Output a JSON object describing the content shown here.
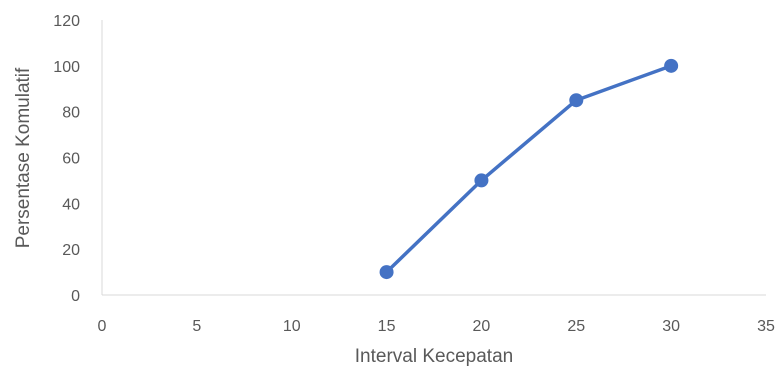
{
  "chart_data": {
    "type": "scatter",
    "title": "",
    "xlabel": "Interval Kecepatan",
    "ylabel": "Persentase Komulatif",
    "xlim": [
      0,
      35
    ],
    "ylim": [
      0,
      120
    ],
    "x_ticks": [
      "0",
      "5",
      "10",
      "15",
      "20",
      "25",
      "30",
      "35"
    ],
    "y_ticks": [
      "0",
      "20",
      "40",
      "60",
      "80",
      "100",
      "120"
    ],
    "grid": false,
    "legend": "none",
    "marker": "circle",
    "line": "straight",
    "series": [
      {
        "x": [
          15,
          20,
          25,
          30
        ],
        "y": [
          10,
          50,
          85,
          100
        ],
        "color": "#4472C4"
      }
    ]
  }
}
